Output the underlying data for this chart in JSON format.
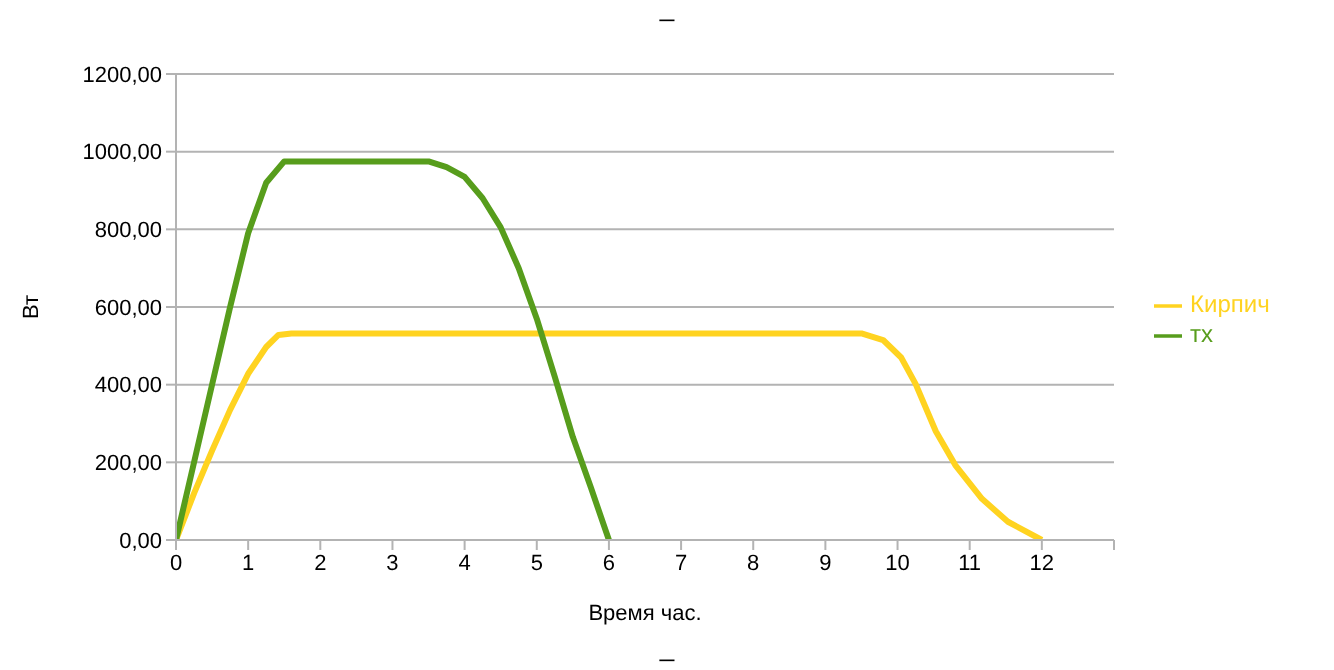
{
  "chart_data": {
    "type": "line",
    "title": "_",
    "xlabel": "Время час.",
    "ylabel": "Вт",
    "annotations": [
      "_"
    ],
    "xlim": [
      0,
      13
    ],
    "xticks": [
      0,
      1,
      2,
      3,
      4,
      5,
      6,
      7,
      8,
      9,
      10,
      11,
      12,
      {
        "value": 13,
        "label": null
      }
    ],
    "ylim": [
      0,
      1200
    ],
    "yticks": [
      {
        "value": 0,
        "label": "0,00"
      },
      {
        "value": 200,
        "label": "200,00"
      },
      {
        "value": 400,
        "label": "400,00"
      },
      {
        "value": 600,
        "label": "600,00"
      },
      {
        "value": 800,
        "label": "800,00"
      },
      {
        "value": 1000,
        "label": "1000,00"
      },
      {
        "value": 1200,
        "label": "1200,00"
      }
    ],
    "grid": "y",
    "legend": "right",
    "marker": "none",
    "line_style": "solid",
    "series": [
      {
        "name": "Кирпич",
        "color": "#ffd320",
        "x": [
          0,
          0.25,
          0.5,
          0.75,
          1,
          1.25,
          1.42,
          1.6,
          9.5,
          9.8,
          10.05,
          10.25,
          10.53,
          10.8,
          11.17,
          11.53,
          12
        ],
        "values": [
          0,
          120,
          230,
          335,
          428,
          497,
          528,
          532,
          532,
          515,
          470,
          402,
          280,
          193,
          106,
          47,
          0
        ]
      },
      {
        "name": "тх",
        "color": "#579d1c",
        "x": [
          0,
          0.25,
          0.5,
          0.75,
          1,
          1.25,
          1.5,
          3.5,
          3.75,
          4,
          4.25,
          4.5,
          4.75,
          5,
          5.25,
          5.5,
          5.75,
          6
        ],
        "values": [
          0,
          200,
          400,
          600,
          790,
          920,
          975,
          975,
          960,
          935,
          880,
          805,
          700,
          570,
          420,
          265,
          135,
          0
        ]
      }
    ]
  }
}
